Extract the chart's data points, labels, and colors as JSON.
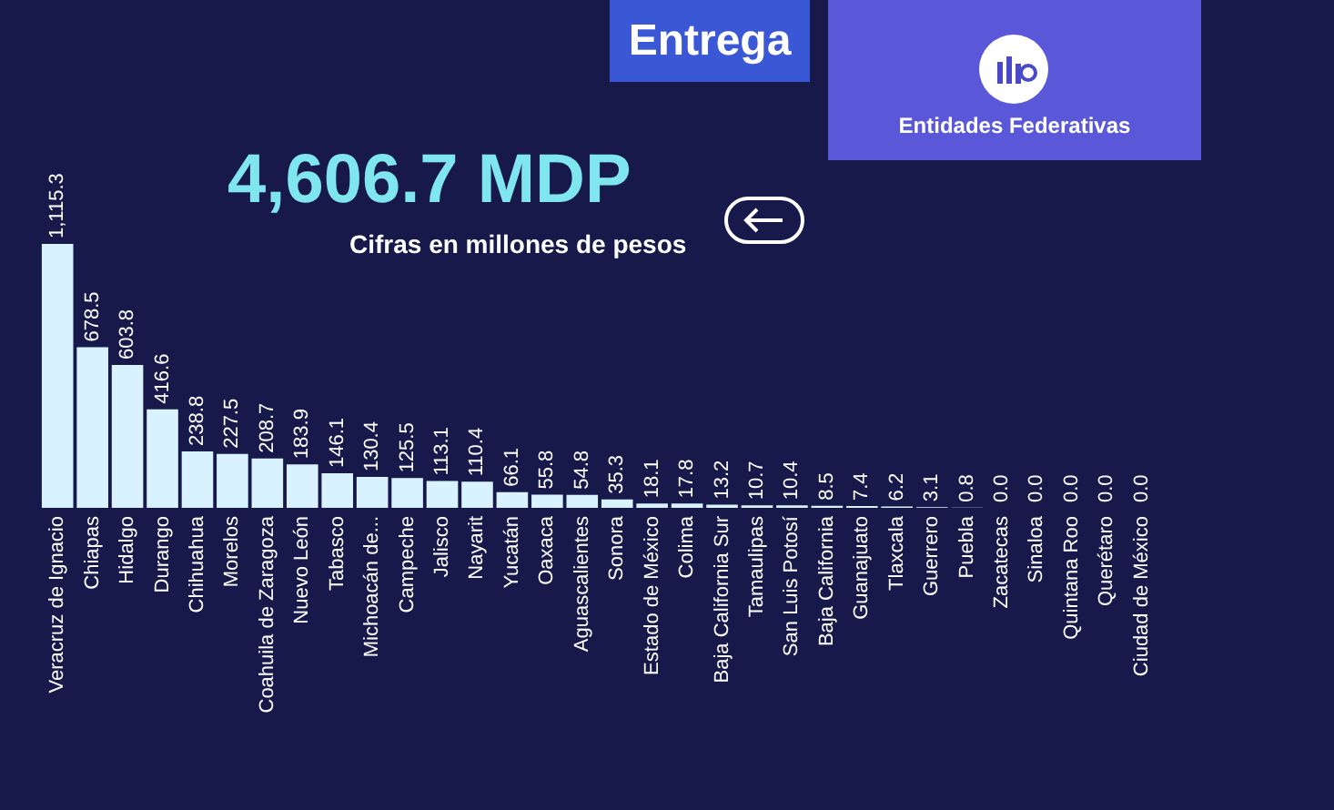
{
  "chart_data": {
    "type": "bar",
    "title": "4,606.7 MDP",
    "subtitle": "Cifras en millones de pesos",
    "annotations": [
      "Entrega",
      "Entidades Federativas"
    ],
    "categories": [
      "Veracruz de Ignacio",
      "Chiapas",
      "Hidalgo",
      "Durango",
      "Chihuahua",
      "Morelos",
      "Coahuila de Zaragoza",
      "Nuevo León",
      "Tabasco",
      "Michoacán de...",
      "Campeche",
      "Jalisco",
      "Nayarit",
      "Yucatán",
      "Oaxaca",
      "Aguascalientes",
      "Sonora",
      "Estado de México",
      "Colima",
      "Baja California Sur",
      "Tamaulipas",
      "San Luis Potosí",
      "Baja California",
      "Guanajuato",
      "Tlaxcala",
      "Guerrero",
      "Puebla",
      "Zacatecas",
      "Sinaloa",
      "Quintana Roo",
      "Querétaro",
      "Ciudad de México"
    ],
    "values": [
      1115.3,
      678.5,
      603.8,
      416.6,
      238.8,
      227.5,
      208.7,
      183.9,
      146.1,
      130.4,
      125.5,
      113.1,
      110.4,
      66.1,
      55.8,
      54.8,
      35.3,
      18.1,
      17.8,
      13.2,
      10.7,
      10.4,
      8.5,
      7.4,
      6.2,
      3.1,
      0.8,
      0,
      0,
      0,
      0,
      0
    ],
    "value_labels": [
      "1,115.3",
      "678.5",
      "603.8",
      "416.6",
      "238.8",
      "227.5",
      "208.7",
      "183.9",
      "146.1",
      "130.4",
      "125.5",
      "113.1",
      "110.4",
      "66.1",
      "55.8",
      "54.8",
      "35.3",
      "18.1",
      "17.8",
      "13.2",
      "10.7",
      "10.4",
      "8.5",
      "7.4",
      "6.2",
      "3.1",
      "0.8",
      "0.0",
      "0.0",
      "0.0",
      "0.0",
      "0.0"
    ],
    "color": "#d8f2ff"
  }
}
